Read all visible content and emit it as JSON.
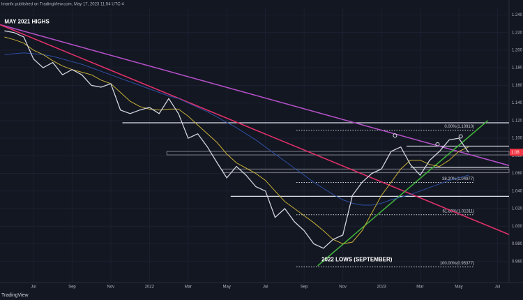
{
  "header": "lmanfx published on TradingView.com, May 17, 2023 11:54 UTC-4",
  "footer": "TradingView",
  "chart_data": {
    "type": "line",
    "x": [
      -1.5,
      -1,
      -0.5,
      0,
      0.5,
      1,
      1.5,
      2,
      2.5,
      3,
      3.5,
      4,
      4.5,
      5,
      5.5,
      6,
      6.5,
      7,
      7.5,
      8,
      8.5,
      9,
      9.5,
      10,
      10.5,
      11,
      11.5,
      12,
      12.5,
      13,
      13.5,
      14,
      14.5,
      15,
      15.5,
      16,
      16.5,
      17,
      17.5,
      18,
      18.5,
      19,
      19.5,
      20,
      20.5,
      21,
      21.5,
      22,
      22.5
    ],
    "series": [
      {
        "color": "#d1d4dc",
        "values": [
          1.222,
          1.22,
          1.215,
          1.19,
          1.18,
          1.186,
          1.172,
          1.178,
          1.172,
          1.16,
          1.158,
          1.162,
          1.132,
          1.128,
          1.132,
          1.135,
          1.128,
          1.145,
          1.128,
          1.1,
          1.105,
          1.09,
          1.072,
          1.055,
          1.068,
          1.058,
          1.045,
          1.04,
          1.01,
          1.02,
          1.005,
          0.995,
          0.98,
          0.975,
          0.985,
          0.99,
          1.035,
          1.05,
          1.06,
          1.065,
          1.085,
          1.09,
          1.07,
          1.058,
          1.075,
          1.085,
          1.098,
          1.1,
          1.084
        ]
      },
      {
        "color": "#c9b037",
        "values": [
          1.215,
          1.212,
          1.208,
          1.2,
          1.195,
          1.188,
          1.182,
          1.178,
          1.175,
          1.172,
          1.166,
          1.162,
          1.152,
          1.142,
          1.136,
          1.133,
          1.132,
          1.133,
          1.133,
          1.125,
          1.115,
          1.105,
          1.095,
          1.082,
          1.072,
          1.066,
          1.06,
          1.052,
          1.04,
          1.028,
          1.02,
          1.012,
          1.004,
          0.995,
          0.985,
          0.98,
          0.982,
          0.995,
          1.015,
          1.035,
          1.05,
          1.065,
          1.075,
          1.075,
          1.07,
          1.068,
          1.075,
          1.085,
          1.09
        ]
      },
      {
        "color": "#2e4fa3",
        "values": [
          1.195,
          1.196,
          1.197,
          1.196,
          1.195,
          1.193,
          1.19,
          1.187,
          1.184,
          1.18,
          1.176,
          1.172,
          1.168,
          1.164,
          1.16,
          1.156,
          1.152,
          1.148,
          1.145,
          1.14,
          1.135,
          1.13,
          1.124,
          1.118,
          1.112,
          1.105,
          1.098,
          1.09,
          1.082,
          1.074,
          1.066,
          1.058,
          1.05,
          1.043,
          1.036,
          1.03,
          1.026,
          1.024,
          1.024,
          1.026,
          1.03,
          1.033,
          1.036,
          1.04,
          1.044,
          1.048,
          1.052,
          1.055,
          1.058
        ]
      }
    ],
    "last_price_label": "1.08",
    "xlim": [
      -1.73,
      24.6
    ],
    "ylim": [
      0.936,
      1.257
    ],
    "xticks": [
      {
        "value": 0,
        "label": "Jul"
      },
      {
        "value": 2,
        "label": "Sep"
      },
      {
        "value": 4,
        "label": "Nov"
      },
      {
        "value": 6,
        "label": "2022"
      },
      {
        "value": 8,
        "label": "Mar"
      },
      {
        "value": 10,
        "label": "May"
      },
      {
        "value": 12,
        "label": "Jul"
      },
      {
        "value": 14,
        "label": "Sep"
      },
      {
        "value": 16,
        "label": "Nov"
      },
      {
        "value": 18,
        "label": "2023"
      },
      {
        "value": 20,
        "label": "Mar"
      },
      {
        "value": 22,
        "label": "May"
      },
      {
        "value": 24,
        "label": "Jul"
      }
    ],
    "yticks": [
      {
        "value": 0.96,
        "label": "0.960"
      },
      {
        "value": 0.98,
        "label": "0.980"
      },
      {
        "value": 1,
        "label": "1.000"
      },
      {
        "value": 1.02,
        "label": "1.020"
      },
      {
        "value": 1.04,
        "label": "1.040"
      },
      {
        "value": 1.06,
        "label": "1.060"
      },
      {
        "value": 1.08,
        "label": "1.080"
      },
      {
        "value": 1.1,
        "label": "1.100"
      },
      {
        "value": 1.12,
        "label": "1.120"
      },
      {
        "value": 1.14,
        "label": "1.140"
      },
      {
        "value": 1.16,
        "label": "1.160"
      },
      {
        "value": 1.18,
        "label": "1.180"
      },
      {
        "value": 1.2,
        "label": "1.200"
      },
      {
        "value": 1.22,
        "label": "1.220"
      },
      {
        "value": 1.24,
        "label": "1.240"
      }
    ],
    "grid": true,
    "levels": [
      {
        "value": 1.1175,
        "from": 4.6,
        "style": "line"
      },
      {
        "value": 1.091,
        "from": 19.3,
        "style": "line"
      },
      {
        "value": 1.083,
        "from": 6.9,
        "style": "box"
      },
      {
        "value": 1.067,
        "from": 19.5,
        "style": "line"
      },
      {
        "value": 1.063,
        "from": 9.8,
        "style": "box"
      },
      {
        "value": 1.034,
        "from": 10.2,
        "style": "line"
      }
    ],
    "fib_levels": [
      {
        "value": 1.1091,
        "label": "0.00%(1.10910)"
      },
      {
        "value": 1.04977,
        "label": "38.20%(1.04977)"
      },
      {
        "value": 1.01311,
        "label": "61.80%(1.01311)"
      },
      {
        "value": 0.95377,
        "label": "100.00%(0.95377)"
      }
    ],
    "fib_from": 13.6,
    "fib_to": 22.8,
    "trendlines": [
      {
        "color": "#b04fc4",
        "points": [
          [
            -1.73,
            1.229
          ],
          [
            24.6,
            1.069
          ]
        ]
      },
      {
        "color": "#e0306a",
        "points": [
          [
            -1.73,
            1.229
          ],
          [
            24.6,
            0.9906
          ]
        ]
      },
      {
        "color": "#3fb03a",
        "points": [
          [
            14.7,
            0.955
          ],
          [
            23.5,
            1.12
          ]
        ]
      }
    ],
    "markers": [
      [
        18.7,
        1.103
      ],
      [
        20.9,
        1.093
      ],
      [
        22.1,
        1.102
      ]
    ],
    "annotations": [
      {
        "text": "MAY 2021 HIGHS",
        "x": -1.5,
        "y": 1.232
      },
      {
        "text": "2022 LOWS (SEPTEMBER)",
        "x": 14.9,
        "y": 0.962
      }
    ]
  }
}
